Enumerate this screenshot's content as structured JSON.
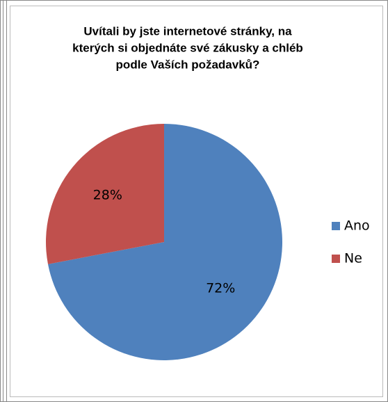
{
  "chart_data": {
    "type": "pie",
    "title": [
      "Uvítali by jste internetové stránky, na",
      "kterých si objednáte své zákusky a chléb",
      "podle Vaších požadavků?"
    ],
    "categories": [
      "Ano",
      "Ne"
    ],
    "values": [
      72,
      28
    ],
    "value_labels": [
      "72%",
      "28%"
    ],
    "colors": [
      "#4f81bd",
      "#c0504d"
    ],
    "legend": "right"
  }
}
